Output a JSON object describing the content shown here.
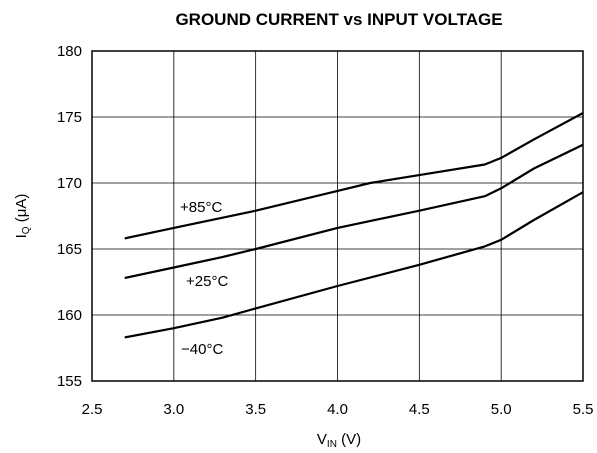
{
  "chart_data": {
    "type": "line",
    "title": "GROUND CURRENT vs INPUT VOLTAGE",
    "xlabel": {
      "main": "V",
      "sub": "IN",
      "unit": " (V)"
    },
    "ylabel": {
      "main": "I",
      "sub": "Q",
      "unit": " (μA)"
    },
    "xlim": [
      2.5,
      5.5
    ],
    "ylim": [
      155,
      180
    ],
    "xticks": [
      "2.5",
      "3.0",
      "3.5",
      "4.0",
      "4.5",
      "5.0",
      "5.5"
    ],
    "yticks": [
      "155",
      "160",
      "165",
      "170",
      "175",
      "180"
    ],
    "grid": true,
    "series": [
      {
        "name": "+85°C",
        "x": [
          2.7,
          3.0,
          3.5,
          4.0,
          4.2,
          4.5,
          4.9,
          5.0,
          5.2,
          5.5
        ],
        "y": [
          165.8,
          166.6,
          167.9,
          169.4,
          170.0,
          170.6,
          171.4,
          171.9,
          173.3,
          175.3
        ]
      },
      {
        "name": "+25°C",
        "x": [
          2.7,
          3.0,
          3.3,
          3.5,
          4.0,
          4.5,
          4.9,
          5.0,
          5.2,
          5.5
        ],
        "y": [
          162.8,
          163.6,
          164.4,
          165.0,
          166.6,
          167.9,
          169.0,
          169.6,
          171.1,
          172.9
        ]
      },
      {
        "name": "−40°C",
        "x": [
          2.7,
          3.0,
          3.3,
          3.5,
          4.0,
          4.5,
          4.9,
          5.0,
          5.2,
          5.5
        ],
        "y": [
          158.3,
          159.0,
          159.8,
          160.5,
          162.2,
          163.8,
          165.2,
          165.7,
          167.2,
          169.3
        ]
      }
    ]
  }
}
